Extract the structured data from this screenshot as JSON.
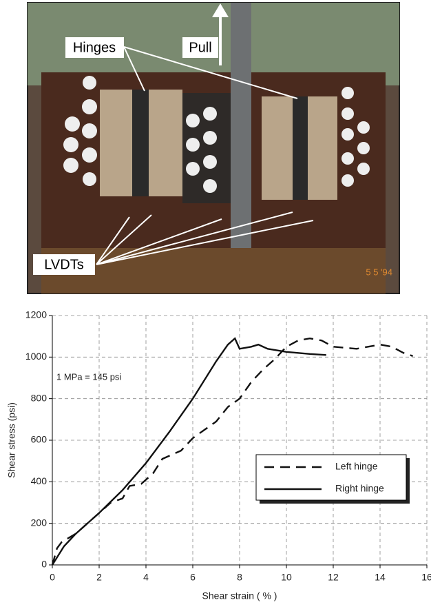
{
  "photo": {
    "labels": {
      "hinges": "Hinges",
      "pull": "Pull",
      "lvdts": "LVDTs",
      "date": "5 5 '94"
    }
  },
  "chart_data": {
    "type": "line",
    "xlabel": "Shear strain ( % )",
    "ylabel": "Shear stress (psi)",
    "annotation": "1 MPa = 145 psi",
    "xlim": [
      0,
      16
    ],
    "xticks": [
      0,
      2,
      4,
      6,
      8,
      10,
      12,
      14,
      16
    ],
    "ylim": [
      0,
      1200
    ],
    "yticks": [
      0,
      200,
      400,
      600,
      800,
      1000,
      1200
    ],
    "grid": true,
    "legend": "lower-right",
    "series": [
      {
        "name": "Left hinge",
        "color": "#111111",
        "style": "dashed",
        "x": [
          0,
          0.2,
          0.4,
          1,
          2,
          2.5,
          3,
          3.3,
          3.8,
          4.3,
          4.7,
          5.5,
          6,
          6.5,
          7,
          7.5,
          8,
          8.5,
          9,
          9.5,
          10,
          10.5,
          11,
          11.5,
          12,
          13,
          14,
          14.5,
          15,
          15.4
        ],
        "values": [
          0,
          80,
          110,
          150,
          250,
          300,
          320,
          380,
          390,
          440,
          510,
          550,
          610,
          650,
          690,
          760,
          800,
          880,
          940,
          990,
          1050,
          1080,
          1090,
          1080,
          1050,
          1040,
          1060,
          1050,
          1020,
          1005
        ]
      },
      {
        "name": "Right hinge",
        "color": "#111111",
        "style": "solid",
        "x": [
          0,
          0.5,
          1,
          2,
          3,
          4,
          5,
          6,
          7,
          7.5,
          7.8,
          8,
          8.5,
          8.8,
          9.2,
          10,
          11,
          11.7
        ],
        "values": [
          0,
          90,
          150,
          250,
          360,
          490,
          640,
          800,
          980,
          1060,
          1090,
          1040,
          1050,
          1060,
          1040,
          1025,
          1015,
          1010
        ]
      }
    ]
  }
}
